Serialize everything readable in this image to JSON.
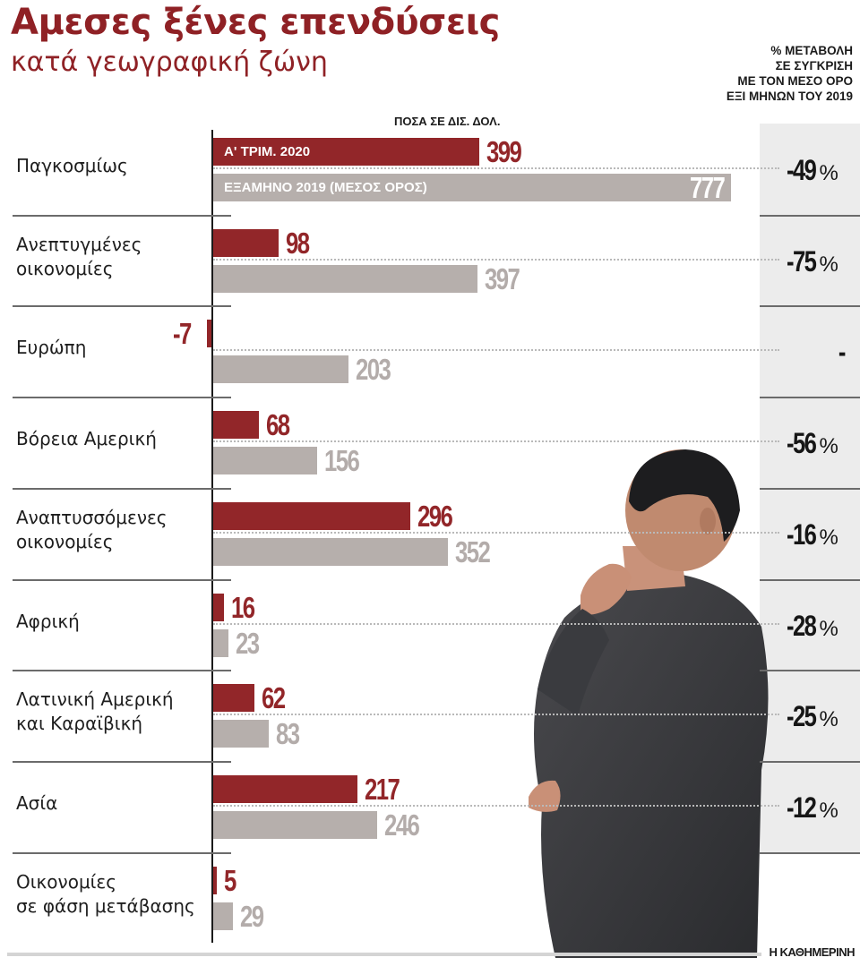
{
  "header": {
    "title": "Αμεσες ξένες επενδύσεις",
    "subtitle": "κατά γεωγραφική ζώνη",
    "pct_header_lines": [
      "% ΜΕΤΑΒΟΛΗ",
      "ΣΕ ΣΥΓΚΡΙΣΗ",
      "ΜΕ ΤΟΝ ΜΕΣΟ ΟΡΟ",
      "ΕΞΙ ΜΗΝΩΝ ΤΟΥ 2019"
    ],
    "amount_header": "ΠΟΣΑ ΣΕ ΔΙΣ. ΔΟΛ."
  },
  "legend": {
    "series_a": "Α' ΤΡΙΜ. 2020",
    "series_b": "ΕΞΑΜΗΝΟ 2019 (ΜΕΣΟΣ ΟΡΟΣ)"
  },
  "colors": {
    "series_a": "#922629",
    "series_b": "#b6afac",
    "title": "#8f2125",
    "pct_panel": "#ececec"
  },
  "rows": [
    {
      "label_lines": [
        "Παγκοσμίως"
      ],
      "q1_2020": "399",
      "h_2019": "777",
      "pct": "-49",
      "pct_sign": "%"
    },
    {
      "label_lines": [
        "Ανεπτυγμένες",
        "οικονομίες"
      ],
      "q1_2020": "98",
      "h_2019": "397",
      "pct": "-75",
      "pct_sign": "%"
    },
    {
      "label_lines": [
        "Ευρώπη"
      ],
      "q1_2020": "-7",
      "h_2019": "203",
      "pct": "-",
      "pct_sign": ""
    },
    {
      "label_lines": [
        "Βόρεια Αμερική"
      ],
      "q1_2020": "68",
      "h_2019": "156",
      "pct": "-56",
      "pct_sign": "%"
    },
    {
      "label_lines": [
        "Αναπτυσσόμενες",
        "οικονομίες"
      ],
      "q1_2020": "296",
      "h_2019": "352",
      "pct": "-16",
      "pct_sign": "%"
    },
    {
      "label_lines": [
        "Αφρική"
      ],
      "q1_2020": "16",
      "h_2019": "23",
      "pct": "-28",
      "pct_sign": "%"
    },
    {
      "label_lines": [
        "Λατινική Αμερική",
        "και Καραϊβική"
      ],
      "q1_2020": "62",
      "h_2019": "83",
      "pct": "-25",
      "pct_sign": "%"
    },
    {
      "label_lines": [
        "Ασία"
      ],
      "q1_2020": "217",
      "h_2019": "246",
      "pct": "-12",
      "pct_sign": "%"
    },
    {
      "label_lines": [
        "Οικονομίες",
        "σε φάση μετάβασης"
      ],
      "q1_2020": "5",
      "h_2019": "29",
      "pct": "",
      "pct_sign": ""
    }
  ],
  "footer": {
    "credit": "Η ΚΑΘΗΜΕΡΙΝΗ"
  },
  "chart_data": {
    "type": "bar",
    "orientation": "horizontal",
    "title": "Αμεσες ξένες επενδύσεις",
    "subtitle": "κατά γεωγραφική ζώνη",
    "xlabel": "ΠΟΣΑ ΣΕ ΔΙΣ. ΔΟΛ.",
    "ylabel": "",
    "categories": [
      "Παγκοσμίως",
      "Ανεπτυγμένες οικονομίες",
      "Ευρώπη",
      "Βόρεια Αμερική",
      "Αναπτυσσόμενες οικονομίες",
      "Αφρική",
      "Λατινική Αμερική και Καραϊβική",
      "Ασία",
      "Οικονομίες σε φάση μετάβασης"
    ],
    "series": [
      {
        "name": "Α' ΤΡΙΜ. 2020",
        "color": "#922629",
        "values": [
          399,
          98,
          -7,
          68,
          296,
          16,
          62,
          217,
          5
        ]
      },
      {
        "name": "ΕΞΑΜΗΝΟ 2019 (ΜΕΣΟΣ ΟΡΟΣ)",
        "color": "#b6afac",
        "values": [
          777,
          397,
          203,
          156,
          352,
          23,
          83,
          246,
          29
        ]
      }
    ],
    "annotations": {
      "column_title": "% ΜΕΤΑΒΟΛΗ ΣΕ ΣΥΓΚΡΙΣΗ ΜΕ ΤΟΝ ΜΕΣΟ ΟΡΟ ΕΞΙ ΜΗΝΩΝ ΤΟΥ 2019",
      "pct_change": [
        -49,
        -75,
        null,
        -56,
        -16,
        -28,
        -25,
        -12,
        null
      ]
    },
    "xlim": [
      -10,
      800
    ],
    "grid": false,
    "legend_position": "inside-first-bars",
    "source": "Η ΚΑΘΗΜΕΡΙΝΗ"
  }
}
